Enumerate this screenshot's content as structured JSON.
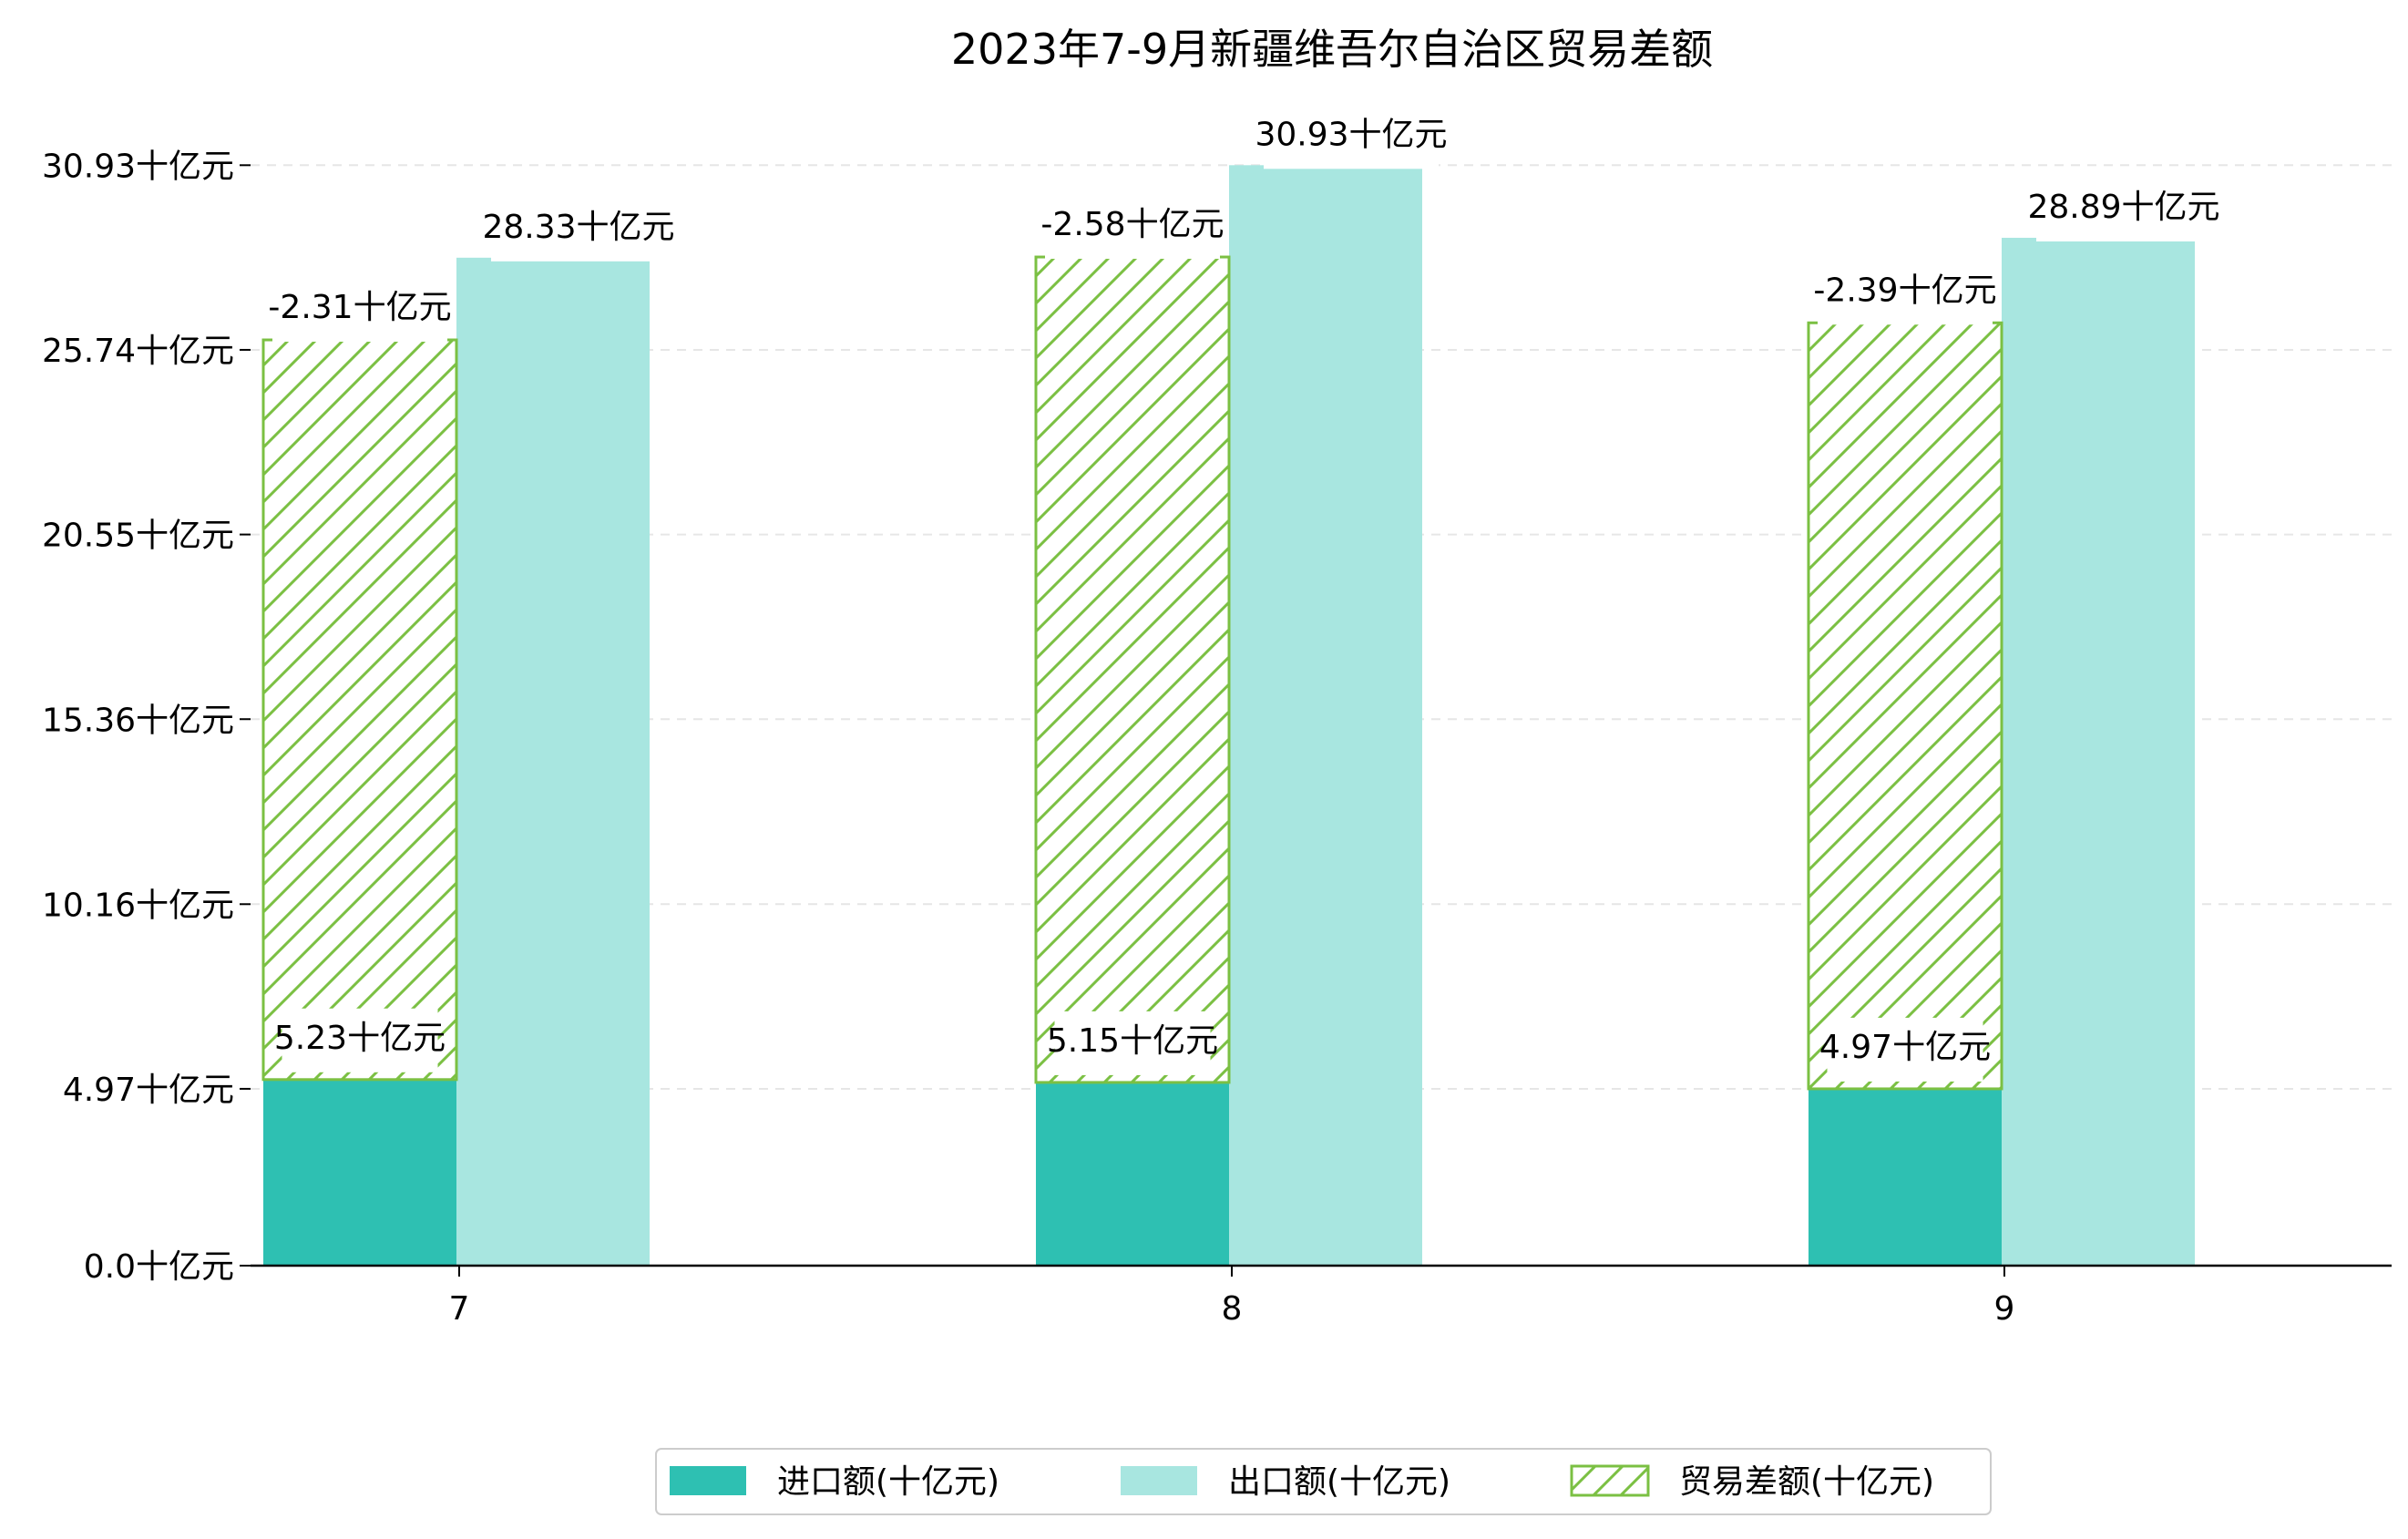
{
  "chart_data": {
    "type": "bar",
    "title": "2023年7-9月新疆维吾尔自治区贸易差额",
    "categories": [
      "7",
      "8",
      "9"
    ],
    "ytick_labels": [
      "0.0十亿元",
      "4.97十亿元",
      "10.16十亿元",
      "15.36十亿元",
      "20.55十亿元",
      "25.74十亿元",
      "30.93十亿元"
    ],
    "ytick_values": [
      0.0,
      4.97,
      10.16,
      15.36,
      20.55,
      25.74,
      30.93
    ],
    "ylim": [
      0,
      32.5
    ],
    "grid": "horizontal dashed",
    "legend_position": "bottom-center",
    "series": [
      {
        "name": "进口额(十亿元)",
        "values": [
          5.23,
          5.15,
          4.97
        ],
        "labels": [
          "5.23十亿元",
          "5.15十亿元",
          "4.97十亿元"
        ],
        "color": "#2ec0b2",
        "style": "solid"
      },
      {
        "name": "出口额(十亿元)",
        "values": [
          28.33,
          30.93,
          28.89
        ],
        "labels": [
          "28.33十亿元",
          "30.93十亿元",
          "28.89十亿元"
        ],
        "color": "#a8e6e0",
        "style": "solid"
      },
      {
        "name": "贸易差额(十亿元)",
        "values": [
          -2.31,
          -2.58,
          -2.39
        ],
        "labels": [
          "-2.31十亿元",
          "-2.58十亿元",
          "-2.39十亿元"
        ],
        "color": "#7bc043",
        "style": "hatched"
      }
    ]
  }
}
